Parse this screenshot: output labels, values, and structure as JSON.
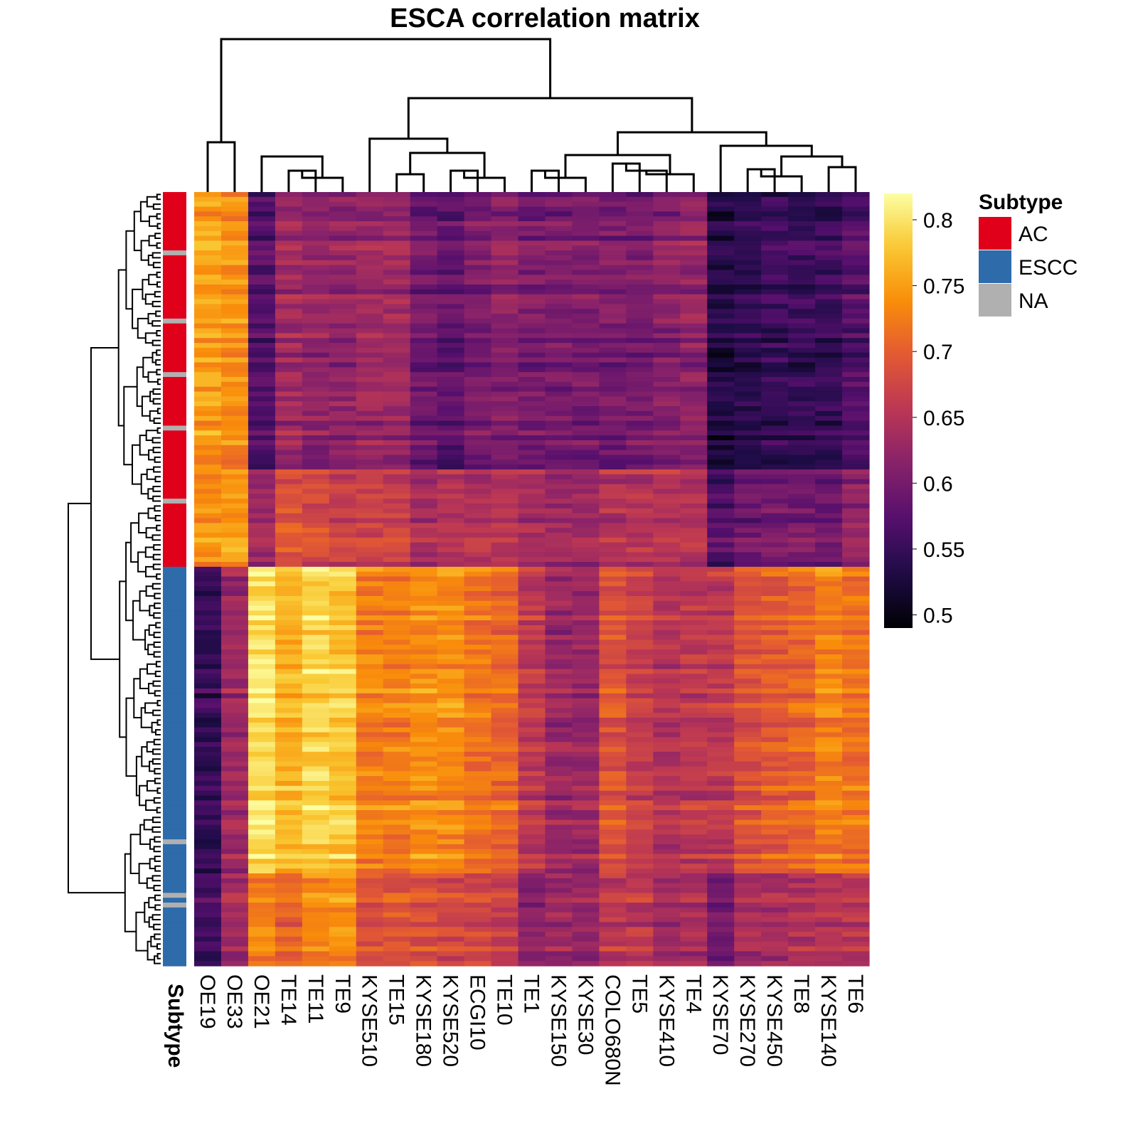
{
  "chart_data": {
    "type": "heatmap",
    "title": "ESCA  correlation matrix",
    "columns": [
      "OE19",
      "OE33",
      "OE21",
      "TE14",
      "TE11",
      "TE9",
      "KYSE510",
      "TE15",
      "KYSE180",
      "KYSE520",
      "ECGI10",
      "TE10",
      "TE1",
      "KYSE150",
      "KYSE30",
      "COLO680N",
      "TE5",
      "KYSE410",
      "TE4",
      "KYSE70",
      "KYSE270",
      "KYSE450",
      "TE8",
      "KYSE140",
      "TE6"
    ],
    "row_annotation_label": "Subtype",
    "row_annotation": [
      "AC",
      "AC",
      "AC",
      "AC",
      "AC",
      "AC",
      "AC",
      "AC",
      "AC",
      "AC",
      "AC",
      "AC",
      "NA",
      "AC",
      "AC",
      "AC",
      "AC",
      "AC",
      "AC",
      "AC",
      "AC",
      "AC",
      "AC",
      "AC",
      "AC",
      "AC",
      "NA",
      "AC",
      "AC",
      "AC",
      "AC",
      "AC",
      "AC",
      "AC",
      "AC",
      "AC",
      "AC",
      "NA",
      "AC",
      "AC",
      "AC",
      "AC",
      "AC",
      "AC",
      "AC",
      "AC",
      "AC",
      "AC",
      "NA",
      "AC",
      "AC",
      "AC",
      "AC",
      "AC",
      "AC",
      "AC",
      "AC",
      "AC",
      "AC",
      "AC",
      "AC",
      "AC",
      "AC",
      "NA",
      "AC",
      "AC",
      "AC",
      "AC",
      "AC",
      "AC",
      "AC",
      "AC",
      "AC",
      "AC",
      "AC",
      "AC",
      "AC",
      "ESCC",
      "ESCC",
      "ESCC",
      "ESCC",
      "ESCC",
      "ESCC",
      "ESCC",
      "ESCC",
      "ESCC",
      "ESCC",
      "ESCC",
      "ESCC",
      "ESCC",
      "ESCC",
      "ESCC",
      "ESCC",
      "ESCC",
      "ESCC",
      "ESCC",
      "ESCC",
      "ESCC",
      "ESCC",
      "ESCC",
      "ESCC",
      "ESCC",
      "ESCC",
      "ESCC",
      "ESCC",
      "ESCC",
      "ESCC",
      "ESCC",
      "ESCC",
      "ESCC",
      "ESCC",
      "ESCC",
      "ESCC",
      "ESCC",
      "ESCC",
      "ESCC",
      "ESCC",
      "ESCC",
      "ESCC",
      "ESCC",
      "ESCC",
      "ESCC",
      "ESCC",
      "ESCC",
      "ESCC",
      "ESCC",
      "ESCC",
      "ESCC",
      "ESCC",
      "ESCC",
      "ESCC",
      "ESCC",
      "ESCC",
      "NA",
      "ESCC",
      "ESCC",
      "ESCC",
      "ESCC",
      "ESCC",
      "ESCC",
      "ESCC",
      "ESCC",
      "ESCC",
      "ESCC",
      "NA",
      "ESCC",
      "NA",
      "ESCC",
      "ESCC",
      "ESCC",
      "ESCC",
      "ESCC",
      "ESCC",
      "ESCC",
      "ESCC",
      "ESCC",
      "ESCC",
      "ESCC",
      "ESCC"
    ],
    "blocks": [
      {
        "subtype": "AC",
        "rows": [
          0,
          57
        ],
        "values": [
          0.75,
          0.74,
          0.57,
          0.63,
          0.62,
          0.62,
          0.63,
          0.63,
          0.59,
          0.58,
          0.6,
          0.61,
          0.6,
          0.6,
          0.6,
          0.6,
          0.6,
          0.61,
          0.62,
          0.53,
          0.54,
          0.55,
          0.55,
          0.55,
          0.57
        ]
      },
      {
        "subtype": "AC",
        "rows": [
          57,
          77
        ],
        "values": [
          0.74,
          0.75,
          0.63,
          0.69,
          0.68,
          0.67,
          0.67,
          0.67,
          0.64,
          0.65,
          0.65,
          0.65,
          0.64,
          0.63,
          0.63,
          0.65,
          0.65,
          0.65,
          0.65,
          0.57,
          0.59,
          0.6,
          0.6,
          0.59,
          0.62
        ]
      },
      {
        "subtype": "ESCC",
        "rows": [
          77,
          140
        ],
        "values": [
          0.55,
          0.63,
          0.8,
          0.77,
          0.79,
          0.78,
          0.73,
          0.73,
          0.74,
          0.74,
          0.72,
          0.71,
          0.66,
          0.63,
          0.63,
          0.69,
          0.67,
          0.65,
          0.66,
          0.66,
          0.69,
          0.7,
          0.71,
          0.73,
          0.72
        ]
      },
      {
        "subtype": "ESCC",
        "rows": [
          140,
          159
        ],
        "values": [
          0.56,
          0.64,
          0.73,
          0.71,
          0.74,
          0.74,
          0.69,
          0.7,
          0.69,
          0.68,
          0.68,
          0.67,
          0.62,
          0.63,
          0.63,
          0.66,
          0.66,
          0.64,
          0.64,
          0.6,
          0.64,
          0.64,
          0.65,
          0.66,
          0.66
        ]
      }
    ],
    "color_scale": {
      "label": "",
      "ticks": [
        0.5,
        0.55,
        0.6,
        0.65,
        0.7,
        0.75,
        0.8
      ],
      "tick_labels": [
        "0.5",
        "0.55",
        "0.6",
        "0.65",
        "0.7",
        "0.75",
        "0.8"
      ],
      "min": 0.49,
      "max": 0.82,
      "palette": "inferno"
    },
    "legend": {
      "title": "Subtype",
      "entries": [
        {
          "label": "AC",
          "color": "#E0001A"
        },
        {
          "label": "ESCC",
          "color": "#2E6BAA"
        },
        {
          "label": "NA",
          "color": "#B0B0B0"
        }
      ]
    }
  }
}
